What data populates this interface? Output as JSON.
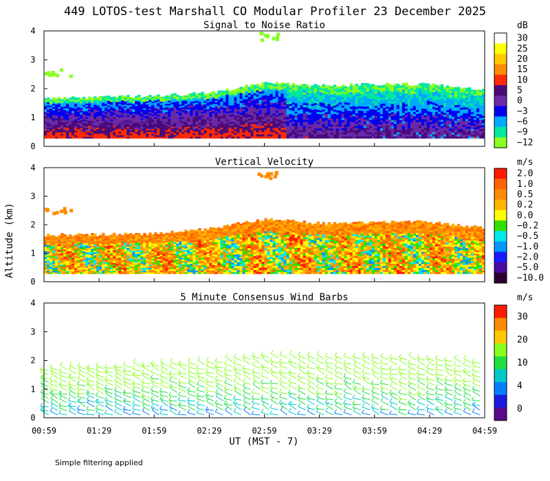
{
  "figure_title": "449 LOTOS-test Marshall CO Modular Profiler 23 December 2025",
  "ylabel_shared": "Altitude (km)",
  "xlabel": "UT  (MST - 7)",
  "x_ticks": [
    "00:59",
    "01:29",
    "01:59",
    "02:29",
    "02:59",
    "03:29",
    "03:59",
    "04:29",
    "04:59"
  ],
  "y_ticks": [
    "0",
    "1",
    "2",
    "3",
    "4"
  ],
  "footnote": "Simple filtering applied",
  "chart_data": [
    {
      "type": "heatmap",
      "title": "Signal to Noise Ratio",
      "xlabel": "UT  (MST - 7)",
      "ylabel": "Altitude (km)",
      "x_range": [
        "00:59",
        "04:59"
      ],
      "ylim": [
        0,
        4
      ],
      "colorbar_unit": "dB",
      "colorbar_labels": [
        "30",
        "25",
        "20",
        "15",
        "10",
        "5",
        "0",
        "−3",
        "−6",
        "−9",
        "−12"
      ],
      "colorbar_colors": [
        "#ffffff",
        "#ffff00",
        "#ffc800",
        "#ff8c00",
        "#ff2a00",
        "#4a0a7a",
        "#6a2aa8",
        "#0000ee",
        "#00aaff",
        "#00e8a0",
        "#88ff20"
      ],
      "profile_top_km_at_ticks": [
        1.65,
        1.7,
        1.75,
        1.85,
        2.2,
        2.1,
        2.15,
        2.15,
        1.95
      ],
      "isolated_echoes": [
        {
          "time_start": "00:59",
          "time_end": "01:13",
          "alt_km": 2.6,
          "snr_db": -12
        },
        {
          "time_start": "02:55",
          "time_end": "03:07",
          "alt_km": 3.85,
          "snr_db": -12
        }
      ]
    },
    {
      "type": "heatmap",
      "title": "Vertical Velocity",
      "xlabel": "UT  (MST - 7)",
      "ylabel": "Altitude (km)",
      "x_range": [
        "00:59",
        "04:59"
      ],
      "ylim": [
        0,
        4
      ],
      "colorbar_unit": "m/s",
      "colorbar_labels": [
        "2.0",
        "1.0",
        "0.5",
        "0.2",
        "0.0",
        "−0.2",
        "−0.5",
        "−1.0",
        "−2.0",
        "−5.0",
        "−10.0"
      ],
      "colorbar_colors": [
        "#ff1a00",
        "#ff6400",
        "#ff8c00",
        "#ffb400",
        "#ffff00",
        "#30e000",
        "#00e8e8",
        "#0098ff",
        "#1a1aff",
        "#4a0aa0",
        "#2a0030"
      ],
      "profile_top_km_at_ticks": [
        1.65,
        1.65,
        1.7,
        1.85,
        2.2,
        2.05,
        2.1,
        2.1,
        1.9
      ],
      "isolated_echoes": [
        {
          "time_start": "00:59",
          "time_end": "01:15",
          "alt_km": 2.55,
          "w_ms": 1.0
        },
        {
          "time_start": "02:55",
          "time_end": "03:07",
          "alt_km": 3.8,
          "w_ms": 0.5
        }
      ]
    },
    {
      "type": "scatter",
      "subtype": "wind_barbs",
      "title": "5 Minute Consensus Wind Barbs",
      "xlabel": "UT  (MST - 7)",
      "ylabel": "Altitude (km)",
      "x_range": [
        "00:59",
        "04:59"
      ],
      "ylim": [
        0,
        4
      ],
      "colorbar_unit": "m/s",
      "colorbar_labels": [
        "30",
        "20",
        "10",
        "4",
        "0"
      ],
      "colorbar_colors": [
        "#ff1a00",
        "#ff8c00",
        "#ffc800",
        "#88ff20",
        "#20e040",
        "#00c8c8",
        "#0080ff",
        "#1a1ae0",
        "#5a0a8a"
      ],
      "legend_ticks_ms": [
        30,
        20,
        10,
        4,
        0
      ],
      "profile_top_km_at_ticks": [
        1.65,
        1.7,
        1.8,
        1.85,
        2.1,
        2.05,
        2.05,
        2.0,
        1.9
      ],
      "speed_by_altitude_ms": [
        {
          "alt_km": 0.1,
          "speed": 5
        },
        {
          "alt_km": 0.5,
          "speed": 7
        },
        {
          "alt_km": 1.0,
          "speed": 10
        },
        {
          "alt_km": 1.5,
          "speed": 12
        },
        {
          "alt_km": 2.0,
          "speed": 15
        }
      ]
    }
  ]
}
